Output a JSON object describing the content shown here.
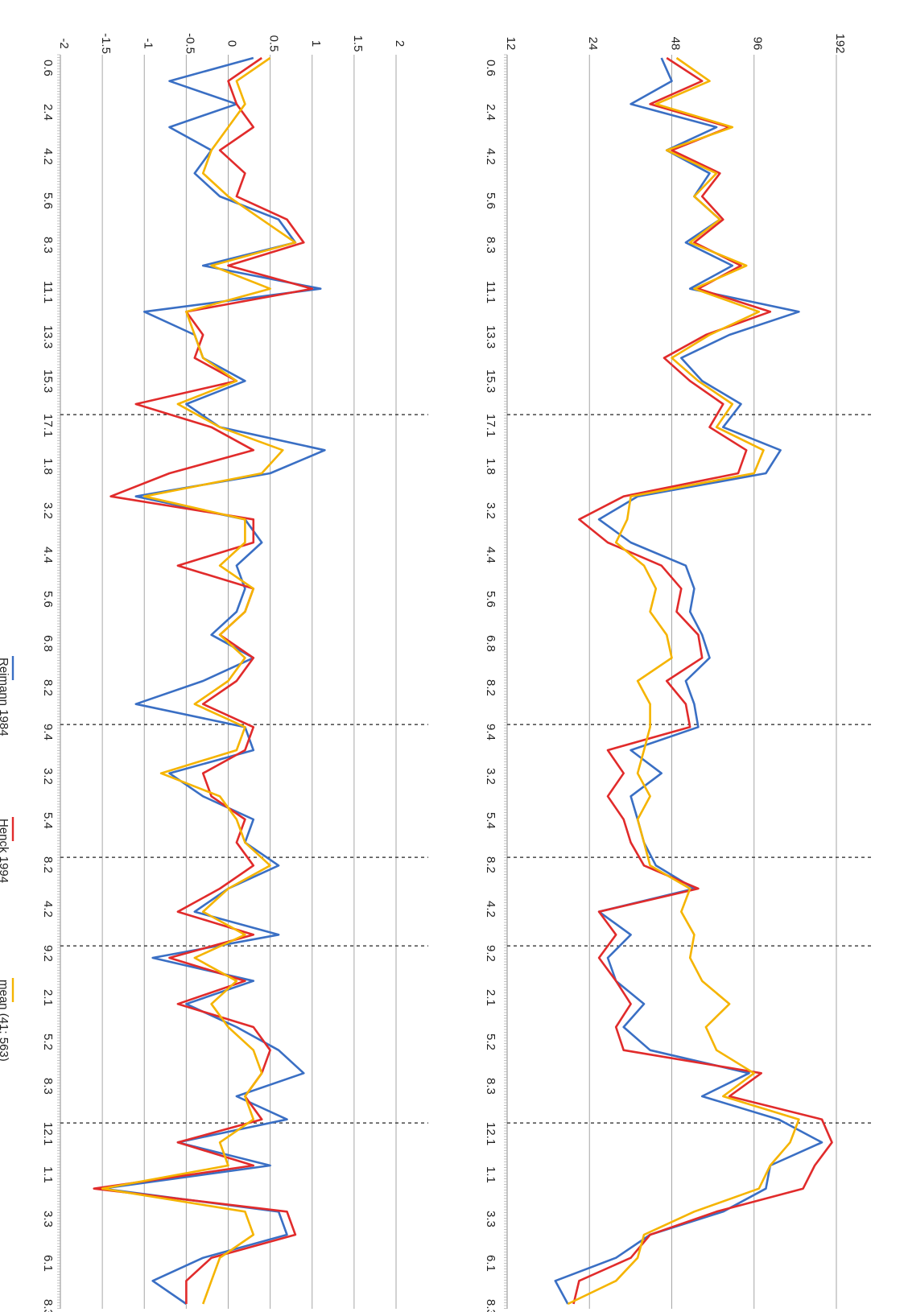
{
  "chart_data": [
    {
      "type": "line",
      "scale": "log2",
      "yticks": [
        12,
        24,
        48,
        96,
        192
      ],
      "ylim": [
        12,
        200
      ],
      "xticks": [
        "0.6",
        "2.4",
        "4.2",
        "5.6",
        "8.3",
        "11.1",
        "13.3",
        "15.3",
        "17.1",
        "1.8",
        "3.2",
        "4.4",
        "5.6",
        "6.8",
        "8.2",
        "9.4",
        "3.2",
        "5.4",
        "8.2",
        "4.2",
        "9.2",
        "2.1",
        "5.2",
        "8.3",
        "12.1",
        "1.1",
        "3.3",
        "6.1",
        "8.3"
      ],
      "separators_after_tick": [
        8,
        15,
        18,
        20,
        24
      ],
      "grid": true,
      "series": [
        {
          "name": "Reimann 1984",
          "color": "#3a6fc4",
          "values": [
            44,
            48,
            34,
            70,
            46,
            66,
            58,
            72,
            54,
            80,
            56,
            140,
            78,
            52,
            62,
            86,
            74,
            120,
            106,
            36,
            26,
            34,
            54,
            58,
            56,
            62,
            66,
            54,
            58,
            60,
            34,
            44,
            34,
            36,
            38,
            42,
            58,
            26,
            34,
            28,
            30,
            38,
            32,
            40,
            92,
            62,
            118,
            170,
            110,
            106,
            74,
            40,
            30,
            18,
            20
          ]
        },
        {
          "name": "Henck 1994",
          "color": "#e12b2b",
          "values": [
            46,
            62,
            40,
            78,
            48,
            72,
            62,
            74,
            58,
            86,
            60,
            110,
            64,
            45,
            56,
            74,
            66,
            90,
            84,
            32,
            22,
            28,
            44,
            52,
            50,
            60,
            62,
            46,
            54,
            56,
            28,
            32,
            28,
            32,
            34,
            38,
            60,
            26,
            30,
            26,
            30,
            34,
            30,
            32,
            102,
            78,
            170,
            185,
            160,
            145,
            70,
            40,
            34,
            22,
            21
          ]
        },
        {
          "name": "mean (41; 563)",
          "color": "#f5b400",
          "values": [
            50,
            66,
            42,
            80,
            46,
            70,
            58,
            72,
            56,
            90,
            58,
            100,
            66,
            48,
            60,
            80,
            70,
            104,
            96,
            34,
            33,
            30,
            38,
            42,
            40,
            46,
            48,
            36,
            40,
            40,
            38,
            36,
            40,
            36,
            38,
            40,
            56,
            52,
            58,
            56,
            62,
            78,
            64,
            70,
            96,
            74,
            140,
            130,
            110,
            100,
            58,
            38,
            36,
            30,
            20
          ]
        }
      ]
    },
    {
      "type": "line",
      "yticks": [
        -2,
        -1.5,
        -1,
        -0.5,
        0,
        0.5,
        1,
        1.5,
        2
      ],
      "ylim": [
        -2,
        2
      ],
      "xticks": [
        "0.6",
        "2.4",
        "4.2",
        "5.6",
        "8.3",
        "11.1",
        "13.3",
        "15.3",
        "17.1",
        "1.8",
        "3.2",
        "4.4",
        "5.6",
        "6.8",
        "8.2",
        "9.4",
        "3.2",
        "5.4",
        "8.2",
        "4.2",
        "9.2",
        "2.1",
        "5.2",
        "8.3",
        "12.1",
        "1.1",
        "3.3",
        "6.1",
        "8.3"
      ],
      "separators_after_tick": [
        8,
        15,
        18,
        20,
        24
      ],
      "grid": true,
      "legend_position": "bottom",
      "series": [
        {
          "name": "Reimann 1984",
          "color": "#3a6fc4",
          "values": [
            0.3,
            -0.7,
            0.1,
            -0.7,
            -0.2,
            -0.4,
            -0.1,
            0.6,
            0.8,
            -0.3,
            1.1,
            -1.0,
            -0.4,
            -0.3,
            0.2,
            -0.5,
            -0.1,
            1.15,
            0.5,
            -1.1,
            0.2,
            0.4,
            0.1,
            0.2,
            0.1,
            -0.2,
            0.3,
            -0.3,
            -1.1,
            0.2,
            0.3,
            -0.7,
            -0.3,
            0.3,
            0.2,
            0.6,
            0.0,
            -0.4,
            0.6,
            -0.9,
            0.3,
            -0.5,
            0.1,
            0.6,
            0.9,
            0.1,
            0.7,
            -0.6,
            0.5,
            -1.5,
            0.6,
            0.7,
            -0.3,
            -0.9,
            -0.5
          ]
        },
        {
          "name": "Henck 1994",
          "color": "#e12b2b",
          "values": [
            0.4,
            0.0,
            0.1,
            0.3,
            -0.1,
            0.2,
            0.1,
            0.7,
            0.9,
            0.0,
            1.0,
            -0.5,
            -0.3,
            -0.4,
            0.1,
            -1.1,
            -0.2,
            0.3,
            -0.7,
            -1.4,
            0.3,
            0.3,
            -0.6,
            0.3,
            0.2,
            -0.1,
            0.3,
            0.1,
            -0.3,
            0.3,
            0.2,
            -0.3,
            -0.2,
            0.2,
            0.1,
            0.3,
            -0.1,
            -0.6,
            0.3,
            -0.7,
            0.2,
            -0.6,
            0.3,
            0.5,
            0.4,
            0.2,
            0.4,
            -0.6,
            0.3,
            -1.6,
            0.7,
            0.8,
            -0.2,
            -0.5,
            -0.5
          ]
        },
        {
          "name": "mean (41; 563)",
          "color": "#f5b400",
          "values": [
            0.5,
            0.1,
            0.2,
            0.0,
            -0.2,
            -0.3,
            0.0,
            0.4,
            0.8,
            -0.2,
            0.5,
            -0.5,
            -0.4,
            -0.3,
            0.1,
            -0.6,
            -0.1,
            0.65,
            0.4,
            -1.0,
            0.2,
            0.2,
            -0.1,
            0.3,
            0.2,
            -0.1,
            0.2,
            0.0,
            -0.4,
            0.2,
            0.1,
            -0.8,
            -0.1,
            0.1,
            0.2,
            0.5,
            0.0,
            -0.3,
            0.2,
            -0.4,
            0.1,
            -0.2,
            0.0,
            0.3,
            0.4,
            0.2,
            0.3,
            -0.1,
            0.0,
            -1.5,
            0.2,
            0.3,
            -0.1,
            -0.2,
            -0.3
          ]
        }
      ]
    }
  ]
}
